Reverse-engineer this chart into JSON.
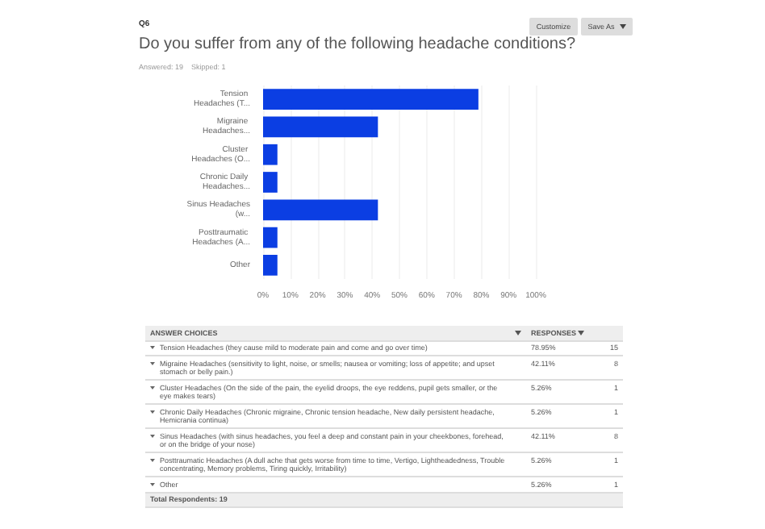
{
  "chart_data": {
    "type": "bar",
    "orientation": "horizontal",
    "title": "Do you suffer from any of the following headache conditions?",
    "subtitle": "Answered: 19    Skipped: 1",
    "categories": [
      "Tension Headaches (T...",
      "Migraine Headaches...",
      "Cluster Headaches (O...",
      "Chronic Daily Headaches...",
      "Sinus Headaches (w...",
      "Posttraumatic Headaches (A...",
      "Other"
    ],
    "values": [
      78.95,
      42.11,
      5.26,
      5.26,
      42.11,
      5.26,
      5.26
    ],
    "color": "#0b3ee3",
    "xlim": [
      0,
      100
    ],
    "xticks": [
      {
        "value": 0,
        "label": "0%"
      },
      {
        "value": 10,
        "label": "10%"
      },
      {
        "value": 20,
        "label": "20%"
      },
      {
        "value": 30,
        "label": "30%"
      },
      {
        "value": 40,
        "label": "40%"
      },
      {
        "value": 50,
        "label": "50%"
      },
      {
        "value": 60,
        "label": "60%"
      },
      {
        "value": 70,
        "label": "70%"
      },
      {
        "value": 80,
        "label": "80%"
      },
      {
        "value": 90,
        "label": "90%"
      },
      {
        "value": 100,
        "label": "100%"
      }
    ],
    "grid": "x",
    "annotations": [
      "Q6",
      "Customize",
      "Save As",
      "ANSWER CHOICES",
      "RESPONSES",
      "Tension Headaches (they cause mild to moderate pain and come and go over time)",
      "Migraine Headaches (sensitivity to light, noise, or smells; nausea or vomiting; loss of appetite; and upset stomach or belly pain.)",
      "Cluster Headaches (On the side of the pain, the eyelid droops, the eye reddens, pupil gets smaller, or the eye makes tears)",
      "Chronic Daily Headaches (Chronic migraine, Chronic tension headache, New daily persistent headache, Hemicrania continua)",
      "Sinus Headaches (with sinus headaches, you feel a deep and constant pain in your cheekbones, forehead, or on the bridge of your nose)",
      "Posttraumatic Headaches (A dull ache that gets worse from time to time, Vertigo, Lightheadedness, Trouble concentrating, Memory problems, Tiring quickly, Irritability)",
      "Other",
      "15",
      "8",
      "1",
      "1",
      "8",
      "1",
      "1",
      "78.95%",
      "42.11%",
      "5.26%",
      "5.26%",
      "42.11%",
      "5.26%",
      "5.26%",
      "Total Respondents: 19"
    ]
  }
}
